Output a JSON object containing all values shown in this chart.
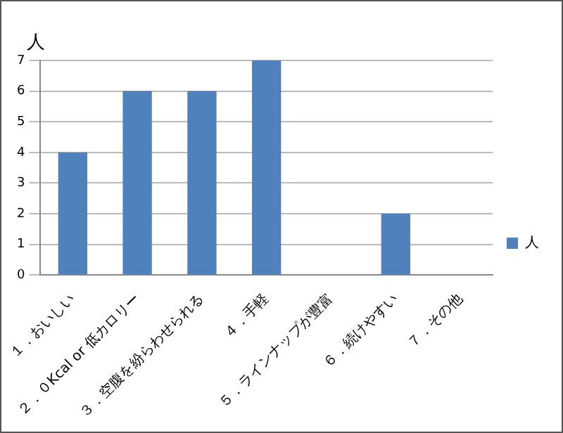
{
  "chart_data": {
    "type": "bar",
    "ylabel": "人",
    "categories": [
      "１．おいしい",
      "２．０Kcal or 低カロリー",
      "３．空腹を紛らわせられる",
      "４．手軽",
      "５．ラインナップが豊富",
      "６．続けやすい",
      "７．その他"
    ],
    "series": [
      {
        "name": "人",
        "color": "#4f81bd",
        "values": [
          4,
          6,
          6,
          7,
          0,
          2,
          0
        ]
      }
    ],
    "ylim": [
      0,
      7
    ],
    "yticks": [
      0,
      1,
      2,
      3,
      4,
      5,
      6,
      7
    ],
    "grid": "y",
    "legend": "right"
  }
}
